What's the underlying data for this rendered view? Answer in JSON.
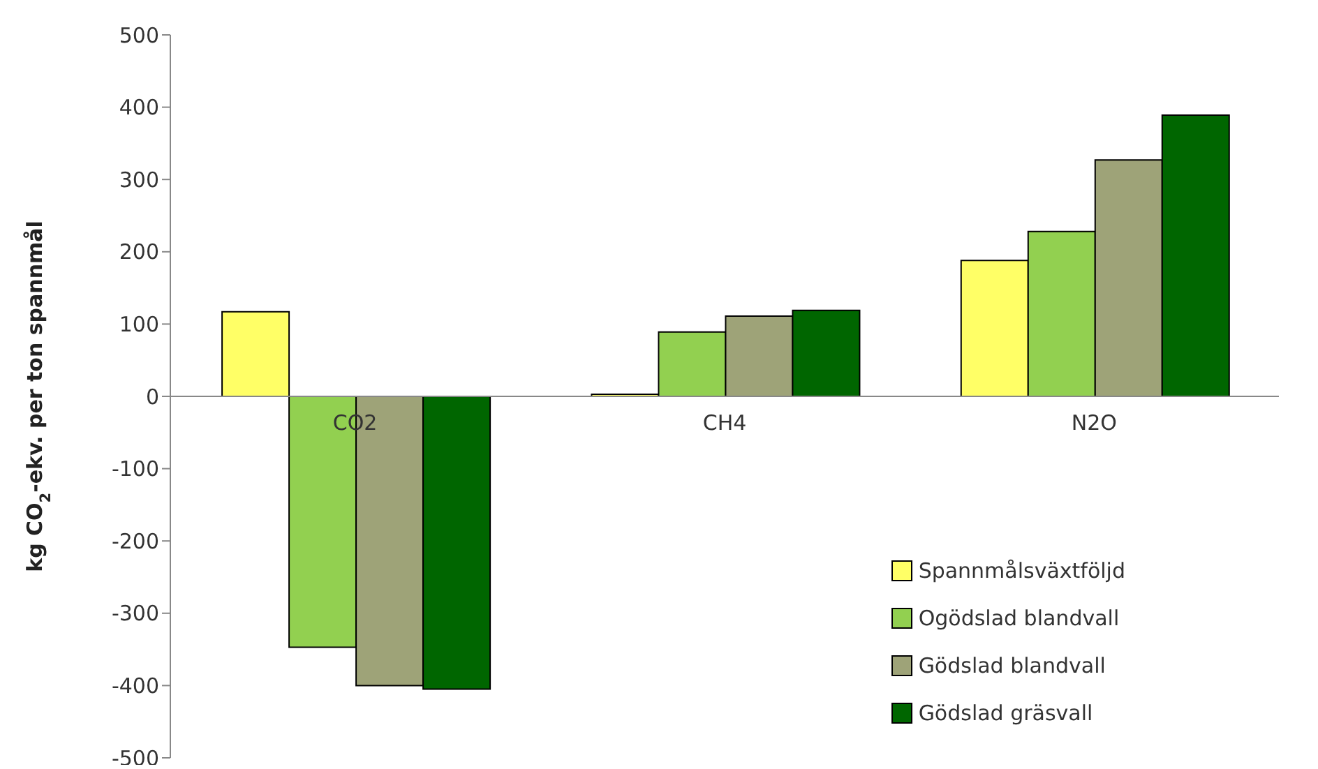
{
  "chart_data": {
    "type": "bar",
    "ylabel": "kg CO$_{2}$-ekv. per ton spannmål",
    "categories": [
      "CO2",
      "CH4",
      "N2O"
    ],
    "series": [
      {
        "name": "Spannmålsväxtföljd",
        "color": "#ffff66",
        "values": [
          117,
          3,
          188
        ]
      },
      {
        "name": "Ogödslad blandvall",
        "color": "#92d050",
        "values": [
          -347,
          89,
          228
        ]
      },
      {
        "name": "Gödslad blandvall",
        "color": "#9ea378",
        "values": [
          -400,
          111,
          327
        ]
      },
      {
        "name": "Gödslad gräsvall",
        "color": "#006600",
        "values": [
          -405,
          119,
          389
        ]
      }
    ],
    "ylim": [
      -500,
      500
    ],
    "yticks": [
      -500,
      -400,
      -300,
      -200,
      -100,
      0,
      100,
      200,
      300,
      400,
      500
    ],
    "grid": false,
    "legend": "bottom right"
  }
}
